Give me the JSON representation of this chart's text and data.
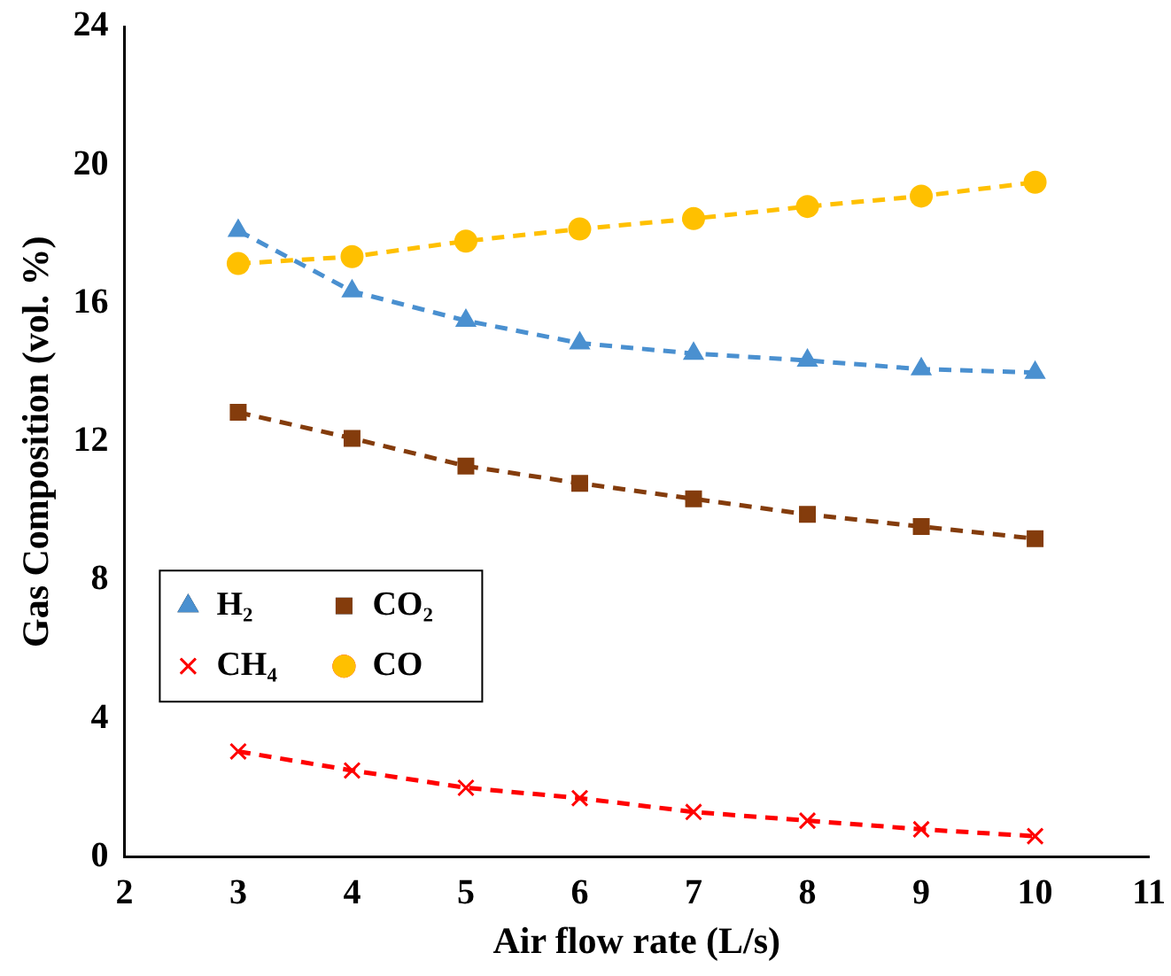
{
  "chart_data": {
    "type": "line",
    "xlabel": "Air flow rate (L/s)",
    "ylabel": "Gas Composition (vol. %)",
    "x": [
      3,
      4,
      5,
      6,
      7,
      8,
      9,
      10
    ],
    "xlim": [
      2,
      11
    ],
    "xticks": [
      2,
      3,
      4,
      5,
      6,
      7,
      8,
      9,
      10,
      11
    ],
    "ylim": [
      0,
      24
    ],
    "yticks": [
      0,
      4,
      8,
      12,
      16,
      20,
      24
    ],
    "grid": false,
    "legend": "left",
    "line_style": "dashed",
    "series": [
      {
        "name": "H₂",
        "color": "#4a90d0",
        "marker": "triangle",
        "values": [
          18.1,
          16.35,
          15.5,
          14.85,
          14.55,
          14.35,
          14.1,
          14.0
        ]
      },
      {
        "name": "CO₂",
        "color": "#843c0c",
        "marker": "square",
        "values": [
          12.85,
          12.1,
          11.3,
          10.8,
          10.35,
          9.9,
          9.55,
          9.2
        ]
      },
      {
        "name": "CH₄",
        "color": "#ff0000",
        "marker": "cross",
        "values": [
          3.05,
          2.5,
          2.0,
          1.7,
          1.3,
          1.05,
          0.8,
          0.6
        ]
      },
      {
        "name": "CO",
        "color": "#ffc000",
        "marker": "circle",
        "values": [
          17.15,
          17.35,
          17.8,
          18.15,
          18.45,
          18.8,
          19.1,
          19.5
        ]
      }
    ]
  }
}
